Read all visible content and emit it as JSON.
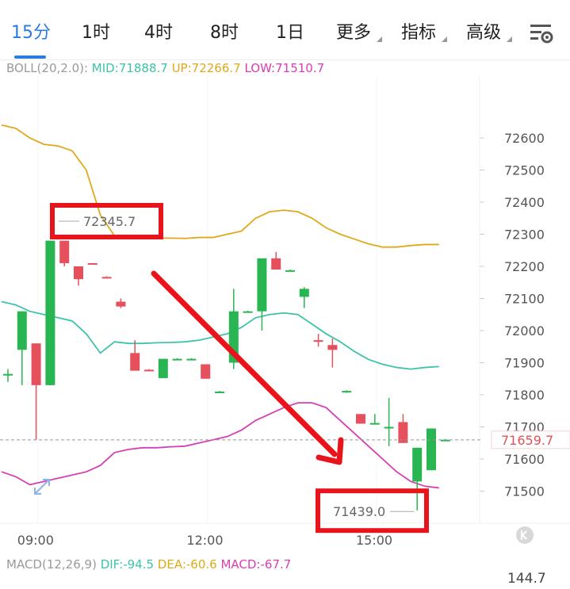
{
  "tabs": [
    {
      "label": "15分",
      "active": true
    },
    {
      "label": "1时"
    },
    {
      "label": "4时"
    },
    {
      "label": "8时"
    },
    {
      "label": "1日"
    },
    {
      "label": "更多",
      "dropdown": true
    },
    {
      "label": "指标",
      "dropdown": true
    },
    {
      "label": "高级",
      "dropdown": true
    }
  ],
  "settings_icon": "chart-settings-icon",
  "boll": {
    "label": "BOLL(20,2.0):",
    "mid": "MID:71888.7",
    "up": "UP:72266.7",
    "low": "LOW:71510.7"
  },
  "macd": {
    "label": "MACD(12,26,9)",
    "dif": "DIF:-94.5",
    "dea": "DEA:-60.6",
    "macd": "MACD:-67.7",
    "axis_value": "144.7"
  },
  "colors": {
    "accent": "#2b7be0",
    "bull": "#28b552",
    "bear": "#e5505c",
    "mid_line": "#3cc3a8",
    "up_line": "#e0a81a",
    "low_line": "#d63fb4",
    "annotation": "#e8141c"
  },
  "chart_data": {
    "type": "candlestick",
    "y_ticks": [
      72600,
      72500,
      72400,
      72300,
      72200,
      72100,
      72000,
      71900,
      71800,
      71700,
      71600,
      71500
    ],
    "ylim": [
      71400,
      72650
    ],
    "x_ticks": [
      {
        "label": "09:00",
        "index": 1
      },
      {
        "label": "12:00",
        "index": 13
      },
      {
        "label": "15:00",
        "index": 25
      }
    ],
    "current_price": "71659.7",
    "current_value": 71659.7,
    "high_marker": {
      "label": "72345.7",
      "value": 72345.7,
      "index": 3.5
    },
    "low_marker": {
      "label": "71439.0",
      "value": 71439.0,
      "index": 29
    },
    "candles": [
      {
        "o": 71860,
        "c": 71865,
        "h": 71880,
        "l": 71840
      },
      {
        "o": 71940,
        "c": 72060,
        "h": 72060,
        "l": 71830
      },
      {
        "o": 71960,
        "c": 71830,
        "h": 71960,
        "l": 71660
      },
      {
        "o": 71830,
        "c": 72280,
        "h": 72280,
        "l": 71830
      },
      {
        "o": 72280,
        "c": 72210,
        "h": 72280,
        "l": 72200
      },
      {
        "o": 72200,
        "c": 72160,
        "h": 72200,
        "l": 72140
      },
      {
        "o": 72210,
        "c": 72208,
        "h": 72210,
        "l": 72206
      },
      {
        "o": 72167,
        "c": 72165,
        "h": 72169,
        "l": 72163
      },
      {
        "o": 72090,
        "c": 72075,
        "h": 72100,
        "l": 72070
      },
      {
        "o": 71930,
        "c": 71875,
        "h": 71970,
        "l": 71875
      },
      {
        "o": 71878,
        "c": 71876,
        "h": 71880,
        "l": 71874
      },
      {
        "o": 71852,
        "c": 71912,
        "h": 71912,
        "l": 71852
      },
      {
        "o": 71912,
        "c": 71912,
        "h": 71914,
        "l": 71910
      },
      {
        "o": 71912,
        "c": 71912,
        "h": 71914,
        "l": 71910
      },
      {
        "o": 71895,
        "c": 71850,
        "h": 71895,
        "l": 71850
      },
      {
        "o": 71810,
        "c": 71810,
        "h": 71812,
        "l": 71808
      },
      {
        "o": 71900,
        "c": 72060,
        "h": 72130,
        "l": 71880
      },
      {
        "o": 72060,
        "c": 72060,
        "h": 72062,
        "l": 72058
      },
      {
        "o": 72060,
        "c": 72225,
        "h": 72225,
        "l": 72000
      },
      {
        "o": 72225,
        "c": 72190,
        "h": 72245,
        "l": 72190
      },
      {
        "o": 72188,
        "c": 72188,
        "h": 72190,
        "l": 72186
      },
      {
        "o": 72105,
        "c": 72130,
        "h": 72135,
        "l": 72070
      },
      {
        "o": 71970,
        "c": 71968,
        "h": 71990,
        "l": 71950
      },
      {
        "o": 71955,
        "c": 71940,
        "h": 71975,
        "l": 71885
      },
      {
        "o": 71810,
        "c": 71812,
        "h": 71814,
        "l": 71806
      },
      {
        "o": 71740,
        "c": 71710,
        "h": 71740,
        "l": 71710
      },
      {
        "o": 71708,
        "c": 71712,
        "h": 71740,
        "l": 71708
      },
      {
        "o": 71700,
        "c": 71700,
        "h": 71790,
        "l": 71640
      },
      {
        "o": 71715,
        "c": 71650,
        "h": 71740,
        "l": 71650
      },
      {
        "o": 71530,
        "c": 71635,
        "h": 71635,
        "l": 71440
      },
      {
        "o": 71565,
        "c": 71695,
        "h": 71695,
        "l": 71565
      },
      {
        "o": 71660,
        "c": 71660,
        "h": 71662,
        "l": 71658
      }
    ],
    "series": [
      {
        "name": "UP",
        "values": [
          72640,
          72630,
          72600,
          72580,
          72575,
          72560,
          72500,
          72360,
          72295,
          72290,
          72290,
          72288,
          72288,
          72287,
          72290,
          72290,
          72300,
          72310,
          72350,
          72370,
          72375,
          72370,
          72350,
          72320,
          72300,
          72285,
          72270,
          72260,
          72260,
          72265,
          72268,
          72268
        ]
      },
      {
        "name": "MID",
        "values": [
          72090,
          72080,
          72060,
          72050,
          72040,
          72030,
          71990,
          71930,
          71965,
          71960,
          71960,
          71962,
          71963,
          71965,
          71970,
          71980,
          71990,
          72010,
          72040,
          72050,
          72055,
          72050,
          72020,
          71990,
          71965,
          71935,
          71910,
          71895,
          71885,
          71880,
          71885,
          71888
        ]
      },
      {
        "name": "LOW",
        "values": [
          71560,
          71545,
          71520,
          71530,
          71540,
          71550,
          71560,
          71580,
          71620,
          71630,
          71635,
          71635,
          71638,
          71640,
          71650,
          71660,
          71670,
          71690,
          71720,
          71740,
          71760,
          71775,
          71775,
          71760,
          71720,
          71680,
          71640,
          71600,
          71560,
          71530,
          71515,
          71510
        ]
      }
    ]
  }
}
